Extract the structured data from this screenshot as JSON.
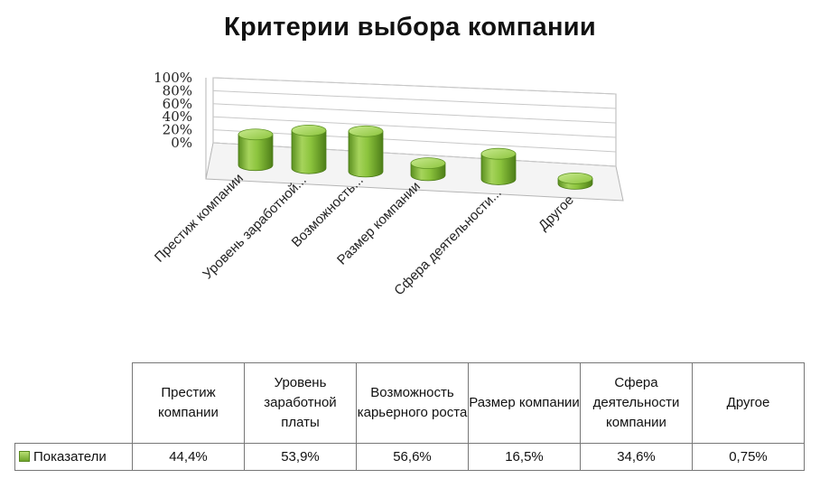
{
  "chart_data": {
    "type": "bar",
    "title": "Критерии выбора компании",
    "categories": [
      "Престиж компании",
      "Уровень заработной платы",
      "Возможность карьерного роста",
      "Размер компании",
      "Сфера деятельности компании",
      "Другое"
    ],
    "axis_category_labels": [
      "Престиж компании",
      "Уровень заработной...",
      "Возможность...",
      "Размер компании",
      "Сфера деятельности...",
      "Другое"
    ],
    "table_headers": [
      "Престиж компании",
      "Уровень заработной платы",
      "Возможность карьерного роста",
      "Размер компании",
      "Сфера деятельности компании",
      "Другое"
    ],
    "series": [
      {
        "name": "Показатели",
        "values": [
          44.4,
          53.9,
          56.6,
          16.5,
          34.6,
          0.75
        ],
        "value_labels": [
          "44,4%",
          "53,9%",
          "56,6%",
          "16,5%",
          "34,6%",
          "0,75%"
        ],
        "color": "#8dc63f"
      }
    ],
    "yticks": [
      "0%",
      "20%",
      "40%",
      "60%",
      "80%",
      "100%"
    ],
    "ylim": [
      0,
      100
    ],
    "style": "3d-cylinder",
    "grid": true,
    "legend": "data-table"
  }
}
